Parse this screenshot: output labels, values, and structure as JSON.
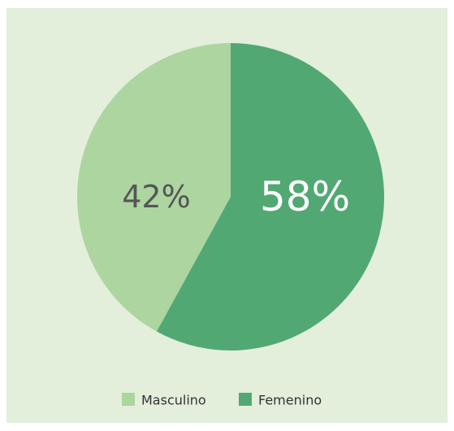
{
  "chart_data": {
    "type": "pie",
    "categories": [
      "Masculino",
      "Femenino"
    ],
    "values": [
      42,
      58
    ],
    "value_labels": [
      "42%",
      "58%"
    ],
    "colors": [
      "#acd5a0",
      "#52a873"
    ],
    "legend": "bottom"
  }
}
